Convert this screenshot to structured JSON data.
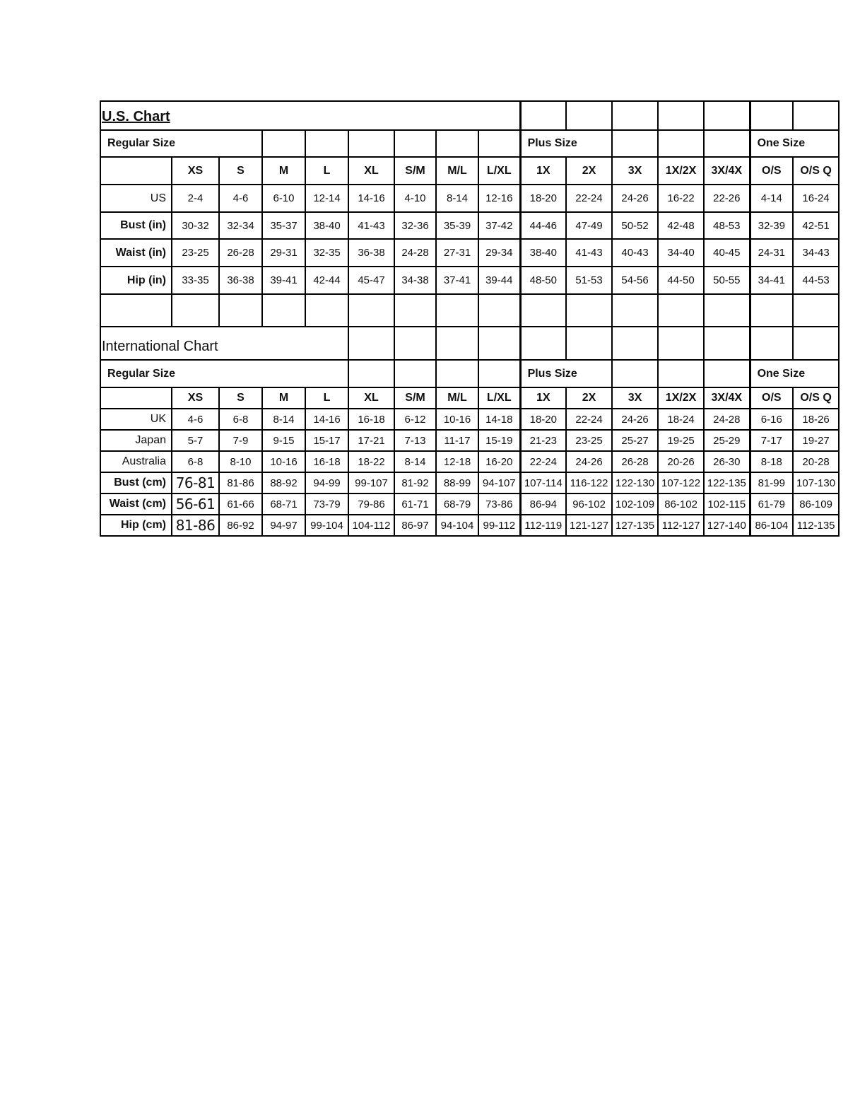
{
  "us_chart": {
    "title": "U.S. Chart",
    "regular_label": "Regular Size",
    "plus_label": "Plus Size",
    "one_size_label": "One Size",
    "sizes": [
      "XS",
      "S",
      "M",
      "L",
      "XL",
      "S/M",
      "M/L",
      "L/XL",
      "1X",
      "2X",
      "3X",
      "1X/2X",
      "3X/4X",
      "O/S",
      "O/S Q"
    ],
    "rows": [
      {
        "label": "US",
        "values": [
          "2-4",
          "4-6",
          "6-10",
          "12-14",
          "14-16",
          "4-10",
          "8-14",
          "12-16",
          "18-20",
          "22-24",
          "24-26",
          "16-22",
          "22-26",
          "4-14",
          "16-24"
        ]
      },
      {
        "label": "Bust (in)",
        "values": [
          "30-32",
          "32-34",
          "35-37",
          "38-40",
          "41-43",
          "32-36",
          "35-39",
          "37-42",
          "44-46",
          "47-49",
          "50-52",
          "42-48",
          "48-53",
          "32-39",
          "42-51"
        ]
      },
      {
        "label": "Waist (in)",
        "values": [
          "23-25",
          "26-28",
          "29-31",
          "32-35",
          "36-38",
          "24-28",
          "27-31",
          "29-34",
          "38-40",
          "41-43",
          "40-43",
          "34-40",
          "40-45",
          "24-31",
          "34-43"
        ]
      },
      {
        "label": "Hip (in)",
        "values": [
          "33-35",
          "36-38",
          "39-41",
          "42-44",
          "45-47",
          "34-38",
          "37-41",
          "39-44",
          "48-50",
          "51-53",
          "54-56",
          "44-50",
          "50-55",
          "34-41",
          "44-53"
        ]
      }
    ]
  },
  "intl_chart": {
    "title": "International Chart",
    "regular_label": "Regular Size",
    "plus_label": "Plus Size",
    "one_size_label": "One Size",
    "sizes": [
      "XS",
      "S",
      "M",
      "L",
      "XL",
      "S/M",
      "M/L",
      "L/XL",
      "1X",
      "2X",
      "3X",
      "1X/2X",
      "3X/4X",
      "O/S",
      "O/S Q"
    ],
    "rows": [
      {
        "label": "UK",
        "values": [
          "4-6",
          "6-8",
          "8-14",
          "14-16",
          "16-18",
          "6-12",
          "10-16",
          "14-18",
          "18-20",
          "22-24",
          "24-26",
          "18-24",
          "24-28",
          "6-16",
          "18-26"
        ]
      },
      {
        "label": "Japan",
        "values": [
          "5-7",
          "7-9",
          "9-15",
          "15-17",
          "17-21",
          "7-13",
          "11-17",
          "15-19",
          "21-23",
          "23-25",
          "25-27",
          "19-25",
          "25-29",
          "7-17",
          "19-27"
        ]
      },
      {
        "label": "Australia",
        "values": [
          "6-8",
          "8-10",
          "10-16",
          "16-18",
          "18-22",
          "8-14",
          "12-18",
          "16-20",
          "22-24",
          "24-26",
          "26-28",
          "20-26",
          "26-30",
          "8-18",
          "20-28"
        ]
      },
      {
        "label": "Bust (cm)",
        "values": [
          "76-81",
          "81-86",
          "88-92",
          "94-99",
          "99-107",
          "81-92",
          "88-99",
          "94-107",
          "107-114",
          "116-122",
          "122-130",
          "107-122",
          "122-135",
          "81-99",
          "107-130"
        ]
      },
      {
        "label": "Waist (cm)",
        "values": [
          "56-61",
          "61-66",
          "68-71",
          "73-79",
          "79-86",
          "61-71",
          "68-79",
          "73-86",
          "86-94",
          "96-102",
          "102-109",
          "86-102",
          "102-115",
          "61-79",
          "86-109"
        ]
      },
      {
        "label": "Hip (cm)",
        "values": [
          "81-86",
          "86-92",
          "94-97",
          "99-104",
          "104-112",
          "86-97",
          "94-104",
          "99-112",
          "112-119",
          "121-127",
          "127-135",
          "112-127",
          "127-140",
          "86-104",
          "112-135"
        ]
      }
    ]
  }
}
